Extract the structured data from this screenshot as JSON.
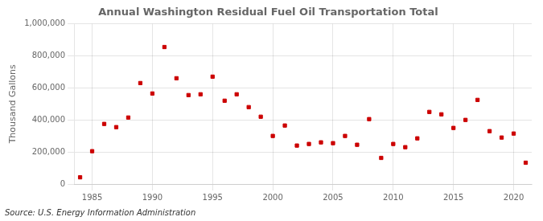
{
  "chart_data": {
    "type": "scatter",
    "title": "Annual Washington Residual Fuel Oil Transportation Total",
    "ylabel": "Thousand Gallons",
    "source": "Source: U.S. Energy Information Administration",
    "x": [
      1984,
      1985,
      1986,
      1987,
      1988,
      1989,
      1990,
      1991,
      1992,
      1993,
      1994,
      1995,
      1996,
      1997,
      1998,
      1999,
      2000,
      2001,
      2002,
      2003,
      2004,
      2005,
      2006,
      2007,
      2008,
      2009,
      2010,
      2011,
      2012,
      2013,
      2014,
      2015,
      2016,
      2017,
      2018,
      2019,
      2020,
      2021
    ],
    "values": [
      42000,
      205000,
      375000,
      355000,
      415000,
      630000,
      565000,
      855000,
      660000,
      555000,
      560000,
      670000,
      520000,
      560000,
      480000,
      420000,
      300000,
      365000,
      240000,
      250000,
      260000,
      255000,
      300000,
      245000,
      405000,
      163000,
      250000,
      230000,
      285000,
      450000,
      435000,
      350000,
      400000,
      525000,
      330000,
      290000,
      315000,
      133000
    ],
    "color": "#cc0000",
    "marker": "square",
    "xlim": [
      1983.5,
      2021.5
    ],
    "xticks": [
      1985,
      1990,
      1995,
      2000,
      2005,
      2010,
      2015,
      2020
    ],
    "ylim": [
      0,
      1000000
    ],
    "yticks": [
      0,
      {
        "value": 200000,
        "label": "200,000"
      },
      {
        "value": 400000,
        "label": "400,000"
      },
      {
        "value": 600000,
        "label": "600,000"
      },
      {
        "value": 800000,
        "label": "800,000"
      },
      {
        "value": 1000000,
        "label": "1,000,000"
      }
    ],
    "grid": true
  }
}
